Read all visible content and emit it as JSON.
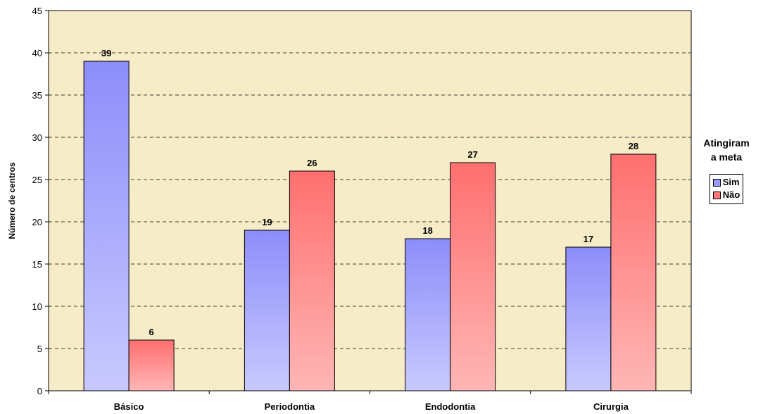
{
  "chart_data": {
    "type": "bar",
    "categories": [
      "Básico",
      "Periodontia",
      "Endodontia",
      "Cirurgia"
    ],
    "series": [
      {
        "name": "Sim",
        "values": [
          39,
          19,
          18,
          17
        ],
        "color": "#9999ff"
      },
      {
        "name": "Não",
        "values": [
          6,
          26,
          27,
          28
        ],
        "color": "#ff7777"
      }
    ],
    "title": "",
    "xlabel": "",
    "ylabel": "Número de centros",
    "ylim": [
      0,
      45
    ],
    "ytick_step": 5,
    "grid": true,
    "grid_style": "dashed",
    "data_labels": true,
    "legend_title": "Atingiram a meta",
    "legend_title_lines": [
      "Atingiram",
      "a meta"
    ],
    "legend_position": "right",
    "plot_background": "#f7ecc8"
  }
}
